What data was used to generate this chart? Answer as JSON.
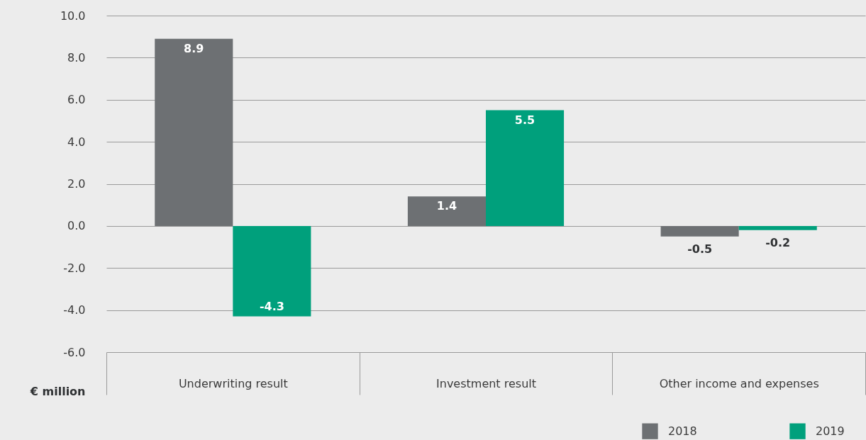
{
  "chart_data": {
    "type": "bar",
    "ylabel": "€ million",
    "categories": [
      "Underwriting result",
      "Investment result",
      "Other income and expenses"
    ],
    "series": [
      {
        "name": "2018",
        "color": "#6d7073",
        "values": [
          8.9,
          1.4,
          -0.5
        ]
      },
      {
        "name": "2019",
        "color": "#00a07c",
        "values": [
          -4.3,
          5.5,
          -0.2
        ]
      }
    ],
    "ylim": [
      -6,
      10
    ],
    "yticks": [
      {
        "value": -6,
        "label": "-6.0"
      },
      {
        "value": -4,
        "label": "-4.0"
      },
      {
        "value": -2,
        "label": "-2.0"
      },
      {
        "value": 0,
        "label": "0.0"
      },
      {
        "value": 2,
        "label": "2.0"
      },
      {
        "value": 4,
        "label": "4.0"
      },
      {
        "value": 6,
        "label": "6.0"
      },
      {
        "value": 8,
        "label": "8.0"
      },
      {
        "value": 10,
        "label": "10.0"
      }
    ],
    "grid": "y",
    "legend": "bottom right",
    "data_labels": true
  }
}
